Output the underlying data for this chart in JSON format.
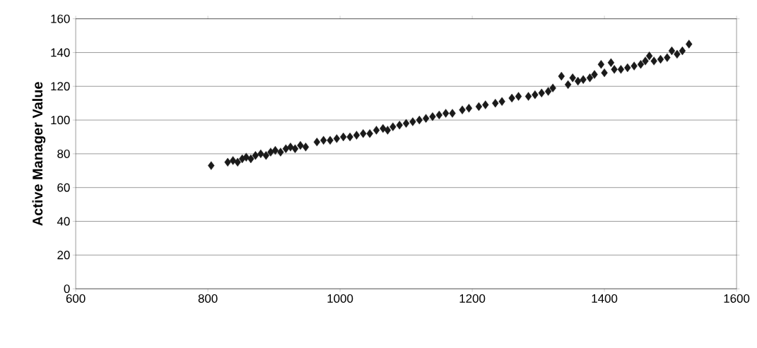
{
  "chart_data": {
    "type": "scatter",
    "ylabel": "Active Manager Value",
    "x": [
      805,
      830,
      838,
      845,
      852,
      858,
      865,
      872,
      880,
      888,
      895,
      902,
      910,
      918,
      925,
      932,
      940,
      948,
      965,
      975,
      985,
      995,
      1005,
      1015,
      1025,
      1035,
      1045,
      1055,
      1065,
      1072,
      1080,
      1090,
      1100,
      1110,
      1120,
      1130,
      1140,
      1150,
      1160,
      1170,
      1185,
      1195,
      1210,
      1220,
      1235,
      1245,
      1260,
      1270,
      1285,
      1295,
      1305,
      1315,
      1322,
      1335,
      1345,
      1352,
      1360,
      1368,
      1378,
      1385,
      1395,
      1400,
      1410,
      1415,
      1425,
      1435,
      1445,
      1455,
      1462,
      1468,
      1475,
      1485,
      1495,
      1502,
      1510,
      1518,
      1528
    ],
    "values": [
      73,
      75,
      76,
      75,
      77,
      78,
      77,
      79,
      80,
      79,
      81,
      82,
      81,
      83,
      84,
      83,
      85,
      84,
      87,
      88,
      88,
      89,
      90,
      90,
      91,
      92,
      92,
      94,
      95,
      94,
      96,
      97,
      98,
      99,
      100,
      101,
      102,
      103,
      104,
      104,
      106,
      107,
      108,
      109,
      110,
      111,
      113,
      114,
      114,
      115,
      116,
      117,
      119,
      126,
      121,
      125,
      123,
      124,
      125,
      127,
      133,
      128,
      134,
      130,
      130,
      131,
      132,
      133,
      135,
      138,
      135,
      136,
      137,
      141,
      139,
      141,
      145
    ],
    "color": "#1a1a1a",
    "marker": "diamond",
    "xlim": [
      600,
      1600
    ],
    "xticks": [
      600,
      800,
      1000,
      1200,
      1400,
      1600
    ],
    "ylim": [
      0,
      160
    ],
    "yticks": [
      0,
      20,
      40,
      60,
      80,
      100,
      120,
      140,
      160
    ],
    "grid": "y"
  }
}
